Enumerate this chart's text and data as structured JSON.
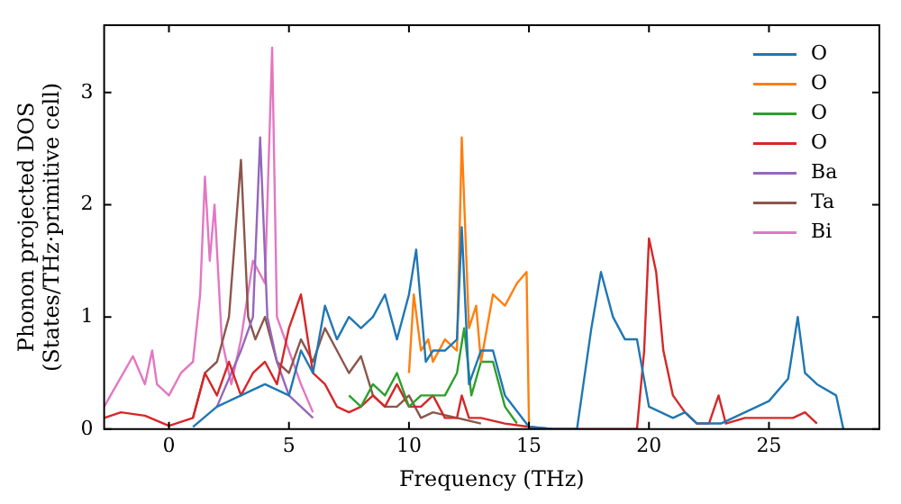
{
  "chart_data": {
    "type": "line",
    "xlabel": "Frequency (THz)",
    "ylabel": "Phonon projected DOS\n(States/THz·primitive cell)",
    "xlim": [
      -2.7,
      29.6
    ],
    "ylim": [
      0,
      3.6
    ],
    "xticks": [
      0,
      5,
      10,
      15,
      20,
      25
    ],
    "yticks": [
      0,
      1,
      2,
      3
    ],
    "grid": false,
    "legend": "top right",
    "marker": "none",
    "line_style": "solid",
    "series": [
      {
        "name": "O",
        "color": "#1f77b4",
        "x": [
          1,
          2,
          3,
          4,
          5,
          5.5,
          6,
          6.5,
          7,
          7.5,
          8,
          8.5,
          9,
          9.5,
          10,
          10.3,
          10.7,
          11,
          11.5,
          12,
          12.2,
          12.5,
          13,
          13.5,
          14,
          15,
          16,
          17,
          17.6,
          18,
          18.5,
          19,
          19.5,
          20,
          20.5,
          21,
          21.5,
          22,
          23,
          24,
          25,
          25.8,
          26.2,
          26.5,
          27,
          27.8,
          28.1
        ],
        "values": [
          0.02,
          0.2,
          0.3,
          0.4,
          0.3,
          0.7,
          0.5,
          1.1,
          0.8,
          1.0,
          0.9,
          1.0,
          1.2,
          0.8,
          1.2,
          1.6,
          0.6,
          0.7,
          0.7,
          0.8,
          1.8,
          0.4,
          0.7,
          0.7,
          0.3,
          0.02,
          0,
          0,
          0.9,
          1.4,
          1.0,
          0.8,
          0.8,
          0.2,
          0.15,
          0.1,
          0.15,
          0.05,
          0.05,
          0.15,
          0.25,
          0.45,
          1.0,
          0.5,
          0.4,
          0.3,
          0
        ]
      },
      {
        "name": "O",
        "color": "#ff7f0e",
        "x": [
          10,
          10.2,
          10.5,
          10.8,
          11,
          11.5,
          12,
          12.2,
          12.5,
          12.8,
          13,
          13.5,
          14,
          14.5,
          14.9,
          15
        ],
        "values": [
          0.5,
          1.2,
          0.7,
          0.8,
          0.6,
          0.8,
          0.7,
          2.6,
          0.9,
          1.1,
          0.6,
          1.2,
          1.1,
          1.3,
          1.4,
          0.05
        ]
      },
      {
        "name": "O",
        "color": "#2ca02c",
        "x": [
          7.5,
          8,
          8.5,
          9,
          9.5,
          10,
          10.5,
          11,
          11.5,
          12,
          12.3,
          12.6,
          13,
          13.5,
          14,
          14.5
        ],
        "values": [
          0.3,
          0.2,
          0.4,
          0.3,
          0.5,
          0.2,
          0.3,
          0.3,
          0.3,
          0.5,
          0.9,
          0.3,
          0.6,
          0.6,
          0.2,
          0.05
        ]
      },
      {
        "name": "O",
        "color": "#d62728",
        "x": [
          -2.7,
          -2,
          -1,
          0,
          1,
          1.5,
          2,
          2.5,
          3,
          3.5,
          4,
          4.5,
          5,
          5.5,
          6,
          6.5,
          7,
          7.5,
          8,
          8.5,
          9,
          9.5,
          10,
          10.5,
          11,
          11.5,
          12,
          12.2,
          12.5,
          13,
          14,
          15,
          16,
          19.5,
          19.8,
          20,
          20.3,
          20.6,
          21,
          21.5,
          22,
          22.5,
          22.9,
          23.2,
          24,
          26,
          26.5,
          27
        ],
        "values": [
          0.1,
          0.15,
          0.12,
          0.03,
          0.1,
          0.5,
          0.3,
          0.6,
          0.3,
          0.5,
          0.6,
          0.4,
          0.9,
          1.2,
          0.5,
          0.4,
          0.2,
          0.15,
          0.2,
          0.3,
          0.2,
          0.4,
          0.2,
          0.2,
          0.3,
          0.1,
          0.1,
          0.3,
          0.1,
          0.1,
          0.05,
          0.02,
          0,
          0,
          0.7,
          1.7,
          1.4,
          0.7,
          0.3,
          0.15,
          0.05,
          0.05,
          0.3,
          0.05,
          0.1,
          0.1,
          0.15,
          0.05
        ]
      },
      {
        "name": "Ba",
        "color": "#9467bd",
        "x": [
          2,
          3,
          3.5,
          3.8,
          4.1,
          4.5,
          5,
          5.5,
          6
        ],
        "values": [
          0.2,
          0.7,
          1.0,
          2.6,
          1.0,
          0.6,
          0.3,
          0.2,
          0.1
        ]
      },
      {
        "name": "Ta",
        "color": "#8c564b",
        "x": [
          1,
          1.5,
          2,
          2.5,
          3,
          3.3,
          3.6,
          4,
          4.5,
          5,
          5.5,
          6,
          6.5,
          7,
          7.5,
          8,
          8.5,
          9,
          9.5,
          10,
          10.5,
          11,
          12,
          13
        ],
        "values": [
          0.1,
          0.5,
          0.6,
          1.0,
          2.4,
          1.0,
          0.8,
          1.0,
          0.6,
          0.5,
          0.8,
          0.6,
          0.9,
          0.7,
          0.5,
          0.65,
          0.3,
          0.2,
          0.2,
          0.3,
          0.1,
          0.15,
          0.1,
          0.05
        ]
      },
      {
        "name": "Bi",
        "color": "#e377c2",
        "x": [
          -2.7,
          -2.3,
          -1.5,
          -1,
          -0.7,
          -0.5,
          0,
          0.5,
          1,
          1.3,
          1.5,
          1.7,
          1.9,
          2.2,
          2.6,
          3,
          3.5,
          4,
          4.3,
          4.5,
          5,
          5.5,
          6
        ],
        "values": [
          0.2,
          0.35,
          0.65,
          0.4,
          0.7,
          0.4,
          0.3,
          0.5,
          0.6,
          1.2,
          2.25,
          1.5,
          2.0,
          0.8,
          0.4,
          0.8,
          1.5,
          1.3,
          3.4,
          1.0,
          0.7,
          0.4,
          0.15
        ]
      }
    ]
  }
}
